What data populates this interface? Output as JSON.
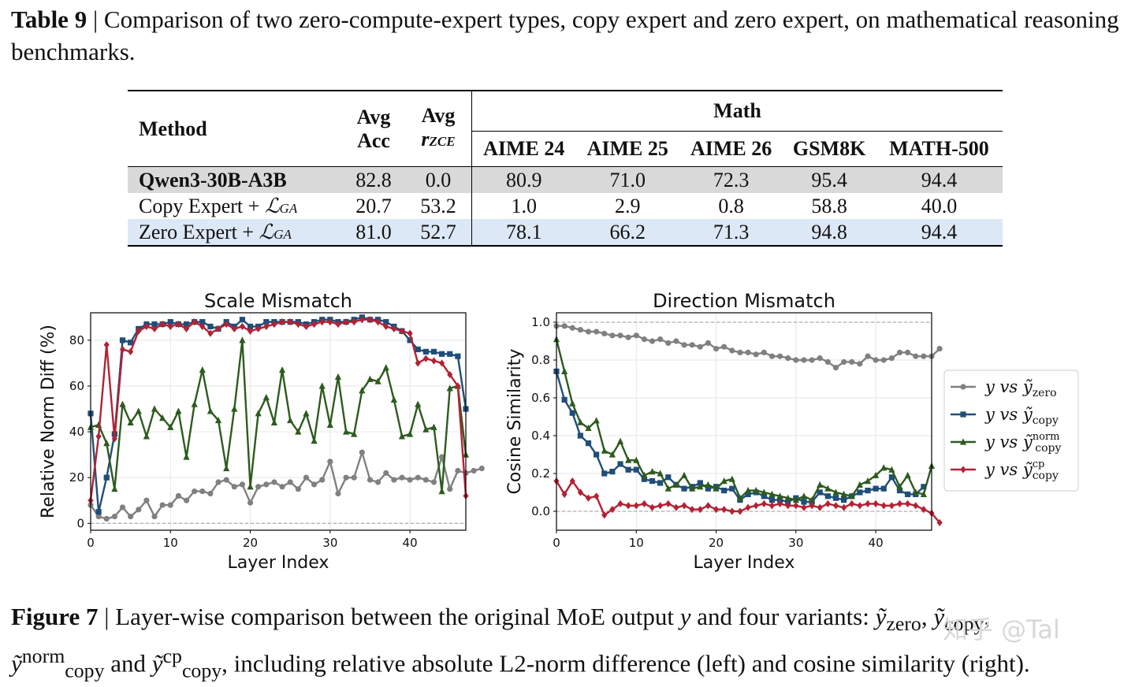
{
  "table": {
    "caption_label": "Table 9",
    "caption_text": " | Comparison of two zero-compute-expert types, copy expert and zero expert, on mathematical reasoning benchmarks.",
    "headers": {
      "method": "Method",
      "avg_acc_1": "Avg",
      "avg_acc_2": "Acc",
      "avg_r_1": "Avg",
      "avg_r_2": "r",
      "avg_r_sub": "ZCE",
      "group": "Math",
      "cols": [
        "AIME 24",
        "AIME 25",
        "AIME 26",
        "GSM8K",
        "MATH-500"
      ]
    },
    "rows": [
      {
        "method": "Qwen3-30B-A3B",
        "avg_acc": "82.8",
        "avg_r": "0.0",
        "vals": [
          "80.9",
          "71.0",
          "72.3",
          "95.4",
          "94.4"
        ]
      },
      {
        "method": "Copy Expert + ",
        "loss": "ℒ",
        "loss_sub": "GA",
        "avg_acc": "20.7",
        "avg_r": "53.2",
        "vals": [
          "1.0",
          "2.9",
          "0.8",
          "58.8",
          "40.0"
        ]
      },
      {
        "method": "Zero Expert + ",
        "loss": "ℒ",
        "loss_sub": "GA",
        "avg_acc": "81.0",
        "avg_r": "52.7",
        "vals": [
          "78.1",
          "66.2",
          "71.3",
          "94.8",
          "94.4"
        ]
      }
    ]
  },
  "chart_data": [
    {
      "type": "line",
      "title": "Scale Mismatch",
      "xlabel": "Layer Index",
      "ylabel": "Relative Norm Diff (%)",
      "xlim": [
        0,
        47
      ],
      "ylim": [
        -3,
        92
      ],
      "xticks": [
        "0",
        "10",
        "20",
        "30",
        "40"
      ],
      "yticks": [
        "0",
        "20",
        "40",
        "60",
        "80"
      ],
      "reference_line": 0,
      "grid": true,
      "series": [
        {
          "key": "zero",
          "color": "#808080",
          "marker": "circle",
          "values": [
            8,
            3,
            2,
            3,
            7,
            3,
            6,
            10,
            3,
            8,
            8,
            12,
            10,
            14,
            14,
            13,
            18,
            19,
            16,
            17,
            9,
            16,
            17,
            18,
            16,
            18,
            15,
            20,
            17,
            19,
            27,
            13,
            20,
            20,
            31,
            19,
            18,
            22,
            19,
            20,
            19,
            20,
            19,
            18,
            29,
            15,
            23,
            22,
            23,
            24
          ]
        },
        {
          "key": "copy",
          "color": "#1f4e79",
          "marker": "square",
          "values": [
            48,
            5,
            20,
            39,
            80,
            79,
            85,
            87,
            87,
            87,
            88,
            87,
            87,
            88,
            88,
            86,
            85,
            88,
            86,
            89,
            86,
            86,
            88,
            88,
            88,
            88,
            88,
            87,
            88,
            89,
            89,
            88,
            88,
            89,
            90,
            89,
            89,
            88,
            86,
            84,
            80,
            76,
            75,
            75,
            74,
            74,
            73,
            50
          ]
        },
        {
          "key": "norm",
          "color": "#2d5b1f",
          "marker": "triangle",
          "values": [
            42,
            43,
            35,
            15,
            52,
            44,
            49,
            38,
            50,
            46,
            42,
            49,
            29,
            52,
            67,
            49,
            45,
            24,
            50,
            80,
            16,
            48,
            55,
            44,
            67,
            45,
            40,
            48,
            36,
            60,
            43,
            64,
            40,
            39,
            58,
            63,
            62,
            68,
            54,
            38,
            39,
            52,
            41,
            42,
            14,
            59,
            60,
            30
          ]
        },
        {
          "key": "cp",
          "color": "#b22234",
          "marker": "diamond",
          "values": [
            10,
            38,
            78,
            37,
            76,
            75,
            84,
            86,
            85,
            87,
            86,
            87,
            85,
            88,
            86,
            83,
            85,
            87,
            85,
            86,
            84,
            85,
            86,
            87,
            88,
            88,
            87,
            86,
            87,
            88,
            88,
            87,
            88,
            88,
            89,
            89,
            88,
            86,
            85,
            84,
            83,
            70,
            72,
            71,
            70,
            65,
            60,
            12
          ]
        }
      ]
    },
    {
      "type": "line",
      "title": "Direction Mismatch",
      "xlabel": "Layer Index",
      "ylabel": "Cosine Similarity",
      "xlim": [
        0,
        47
      ],
      "ylim": [
        -0.1,
        1.05
      ],
      "xticks": [
        "0",
        "10",
        "20",
        "30",
        "40"
      ],
      "yticks": [
        "0.0",
        "0.2",
        "0.4",
        "0.6",
        "0.8",
        "1.0"
      ],
      "reference_lines": [
        0,
        1
      ],
      "grid": true,
      "legend": "right",
      "series": [
        {
          "key": "zero",
          "name_base": "y vs ỹ",
          "name_sub": "zero",
          "color": "#808080",
          "marker": "circle",
          "values": [
            0.98,
            0.98,
            0.97,
            0.96,
            0.95,
            0.95,
            0.94,
            0.93,
            0.93,
            0.92,
            0.93,
            0.91,
            0.9,
            0.91,
            0.89,
            0.9,
            0.88,
            0.88,
            0.87,
            0.89,
            0.86,
            0.87,
            0.85,
            0.84,
            0.84,
            0.83,
            0.84,
            0.82,
            0.82,
            0.81,
            0.8,
            0.8,
            0.8,
            0.81,
            0.79,
            0.76,
            0.79,
            0.79,
            0.78,
            0.82,
            0.8,
            0.8,
            0.81,
            0.84,
            0.84,
            0.82,
            0.82,
            0.82,
            0.86
          ]
        },
        {
          "key": "copy",
          "name_base": "y vs ỹ",
          "name_sub": "copy",
          "color": "#1f4e79",
          "marker": "square",
          "values": [
            0.74,
            0.59,
            0.52,
            0.4,
            0.36,
            0.3,
            0.2,
            0.21,
            0.25,
            0.22,
            0.22,
            0.17,
            0.16,
            0.15,
            0.18,
            0.14,
            0.12,
            0.13,
            0.15,
            0.12,
            0.13,
            0.11,
            0.12,
            0.06,
            0.09,
            0.1,
            0.08,
            0.06,
            0.06,
            0.05,
            0.07,
            0.05,
            0.05,
            0.1,
            0.08,
            0.07,
            0.06,
            0.08,
            0.1,
            0.11,
            0.12,
            0.12,
            0.18,
            0.11,
            0.09,
            0.09,
            0.13
          ]
        },
        {
          "key": "norm",
          "name_base": "y vs ỹ",
          "name_sub": "copy",
          "name_sup": "norm",
          "color": "#2d5b1f",
          "marker": "triangle",
          "values": [
            0.91,
            0.74,
            0.57,
            0.47,
            0.44,
            0.48,
            0.32,
            0.3,
            0.37,
            0.27,
            0.27,
            0.19,
            0.21,
            0.2,
            0.12,
            0.14,
            0.19,
            0.12,
            0.13,
            0.14,
            0.12,
            0.16,
            0.17,
            0.07,
            0.11,
            0.11,
            0.1,
            0.09,
            0.08,
            0.07,
            0.06,
            0.08,
            0.06,
            0.14,
            0.12,
            0.1,
            0.09,
            0.08,
            0.14,
            0.16,
            0.19,
            0.23,
            0.22,
            0.13,
            0.19,
            0.1,
            0.09,
            0.24
          ]
        },
        {
          "key": "cp",
          "name_base": "y vs ỹ",
          "name_sub": "copy",
          "name_sup": "cp",
          "color": "#b22234",
          "marker": "diamond",
          "values": [
            0.16,
            0.09,
            0.16,
            0.1,
            0.07,
            0.08,
            -0.02,
            0.01,
            0.04,
            0.03,
            0.03,
            0.04,
            0.02,
            0.03,
            0.04,
            0.02,
            0.03,
            0.01,
            0.01,
            0.03,
            0.01,
            0.01,
            0.0,
            0.0,
            0.02,
            0.03,
            0.04,
            0.03,
            0.04,
            0.03,
            0.03,
            0.02,
            0.03,
            0.02,
            0.04,
            0.03,
            0.02,
            0.04,
            0.03,
            0.04,
            0.04,
            0.03,
            0.03,
            0.04,
            0.04,
            0.03,
            0.01,
            -0.01,
            -0.06
          ]
        }
      ]
    }
  ],
  "figure": {
    "caption_label": "Figure 7",
    "caption_text_1": " | Layer-wise comparison between the original MoE output ",
    "caption_y": "y",
    "caption_text_2": " and four variants: ",
    "v1": "ỹ",
    "v1_sub": "zero",
    "sep1": ", ",
    "v2": "ỹ",
    "v2_sub": "copy",
    "sep2": ",",
    "v3": "ỹ",
    "v3_sub": "copy",
    "v3_sup": "norm",
    "and": " and ",
    "v4": "ỹ",
    "v4_sub": "copy",
    "v4_sup": "cp",
    "caption_text_3": ", including relative absolute L2-norm difference (left) and cosine similarity (right)."
  },
  "watermark": "知乎 @Tal"
}
